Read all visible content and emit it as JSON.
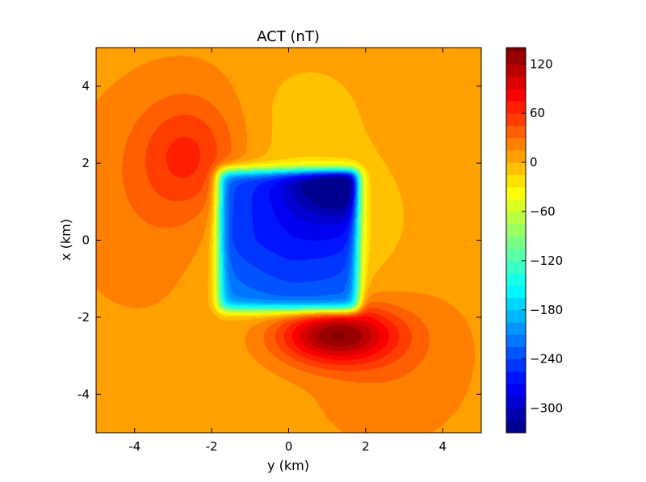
{
  "chart_data": {
    "type": "contour",
    "title": "ACT (nT)",
    "xlabel": "y (km)",
    "ylabel": "x (km)",
    "xlim": [
      -5,
      5
    ],
    "ylim": [
      -5,
      5
    ],
    "xticks": [
      {
        "value": -4,
        "label": "-4"
      },
      {
        "value": -2,
        "label": "-2"
      },
      {
        "value": 0,
        "label": "0"
      },
      {
        "value": 2,
        "label": "2"
      },
      {
        "value": 4,
        "label": "4"
      }
    ],
    "yticks": [
      {
        "value": -4,
        "label": "-4"
      },
      {
        "value": -2,
        "label": "-2"
      },
      {
        "value": 0,
        "label": "0"
      },
      {
        "value": 2,
        "label": "2"
      },
      {
        "value": 4,
        "label": "4"
      }
    ],
    "colorbar": {
      "range": [
        -330,
        140
      ],
      "levels": [
        -330,
        -315,
        -300,
        -285,
        -270,
        -255,
        -240,
        -225,
        -210,
        -195,
        -180,
        -165,
        -150,
        -135,
        -120,
        -105,
        -90,
        -75,
        -60,
        -45,
        -30,
        -15,
        0,
        15,
        30,
        45,
        60,
        75,
        90,
        105,
        120,
        135,
        140
      ],
      "ticks": [
        {
          "value": 120,
          "label": "120"
        },
        {
          "value": 60,
          "label": "60"
        },
        {
          "value": 0,
          "label": "0"
        },
        {
          "value": -60,
          "label": "−60"
        },
        {
          "value": -120,
          "label": "−120"
        },
        {
          "value": -180,
          "label": "−180"
        },
        {
          "value": -240,
          "label": "−240"
        },
        {
          "value": -300,
          "label": "−300"
        }
      ],
      "colormap": "jet"
    },
    "features": [
      {
        "kind": "block",
        "value": -260,
        "y_range": [
          -1.8,
          1.8
        ],
        "x_range": [
          -1.8,
          1.8
        ]
      },
      {
        "kind": "minimum",
        "value": -330,
        "y": 1.4,
        "x": 1.6
      },
      {
        "kind": "maximum",
        "value": 135,
        "y": 1.2,
        "x": -2.4
      },
      {
        "kind": "local_high",
        "value": 55,
        "y": -2.6,
        "x": 2.2
      }
    ]
  }
}
